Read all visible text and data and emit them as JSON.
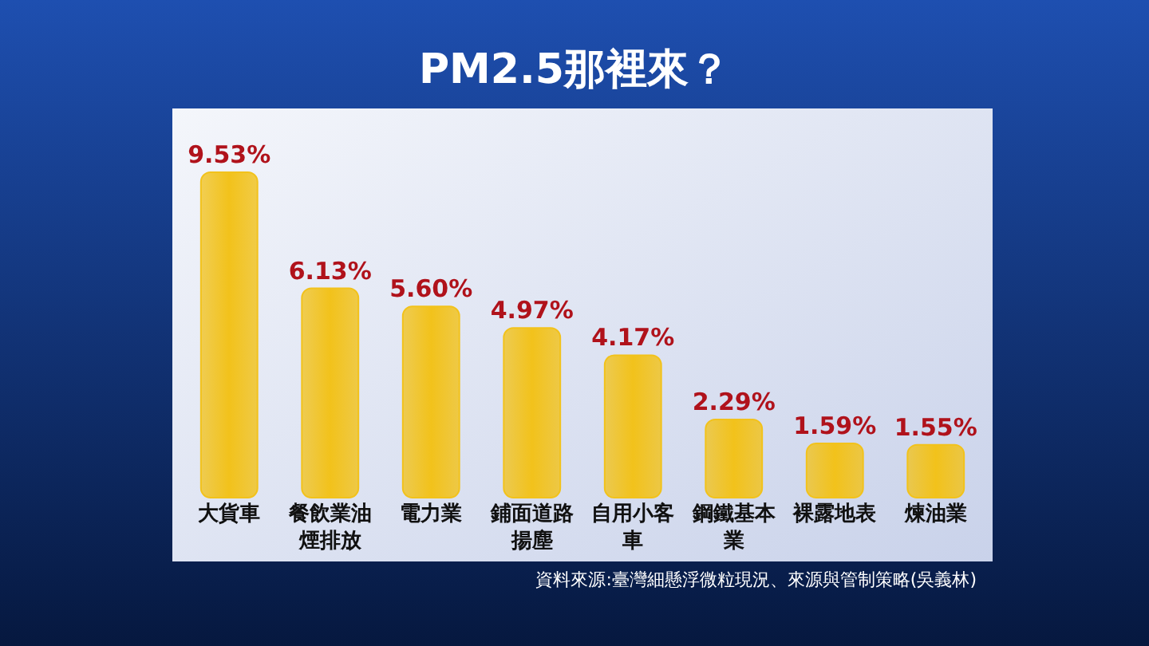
{
  "chart_data": {
    "type": "bar",
    "title": "PM2.5那裡來？",
    "categories": [
      "大貨車",
      "餐飲業油煙排放",
      "電力業",
      "鋪面道路揚塵",
      "自用小客車",
      "鋼鐵基本業",
      "裸露地表",
      "煉油業"
    ],
    "values": [
      9.53,
      6.13,
      5.6,
      4.97,
      4.17,
      2.29,
      1.59,
      1.55
    ],
    "value_labels": [
      "9.53%",
      "6.13%",
      "5.60%",
      "4.97%",
      "4.17%",
      "2.29%",
      "1.59%",
      "1.55%"
    ],
    "color": "#f2c21b",
    "annotations": [
      "資料來源:臺灣細懸浮微粒現況、來源與管制策略(吳義林)"
    ]
  }
}
